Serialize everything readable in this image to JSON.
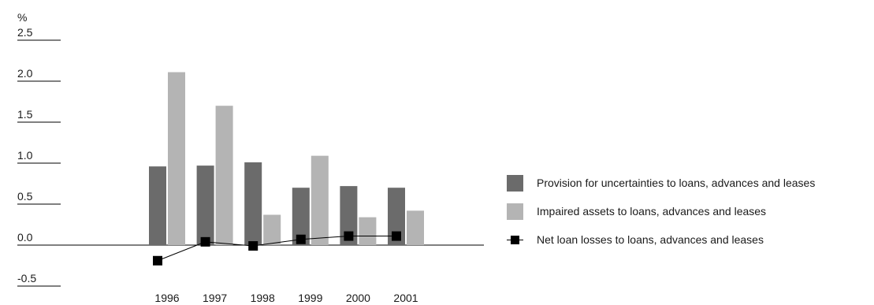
{
  "chart_data": {
    "type": "bar",
    "unit_label": "%",
    "categories": [
      "1996",
      "1997",
      "1998",
      "1999",
      "2000",
      "2001"
    ],
    "y_ticks": [
      "2.5",
      "2.0",
      "1.5",
      "1.0",
      "0.5",
      "0.0",
      "-0.5"
    ],
    "ylim": [
      -0.5,
      2.5
    ],
    "grid": false,
    "legend_position": "right",
    "series": [
      {
        "name": "Provision for uncertainties to loans, advances and leases",
        "type": "bar",
        "color": "#6b6b6b",
        "values": [
          0.96,
          0.97,
          1.01,
          0.7,
          0.72,
          0.7
        ]
      },
      {
        "name": "Impaired assets to loans, advances and leases",
        "type": "bar",
        "color": "#b4b4b4",
        "values": [
          2.11,
          1.7,
          0.37,
          1.09,
          0.34,
          0.42
        ]
      },
      {
        "name": "Net loan losses to loans, advances and leases",
        "type": "line",
        "color": "#000000",
        "marker": "square",
        "values": [
          -0.19,
          0.04,
          -0.01,
          0.07,
          0.11,
          0.11
        ]
      }
    ]
  }
}
